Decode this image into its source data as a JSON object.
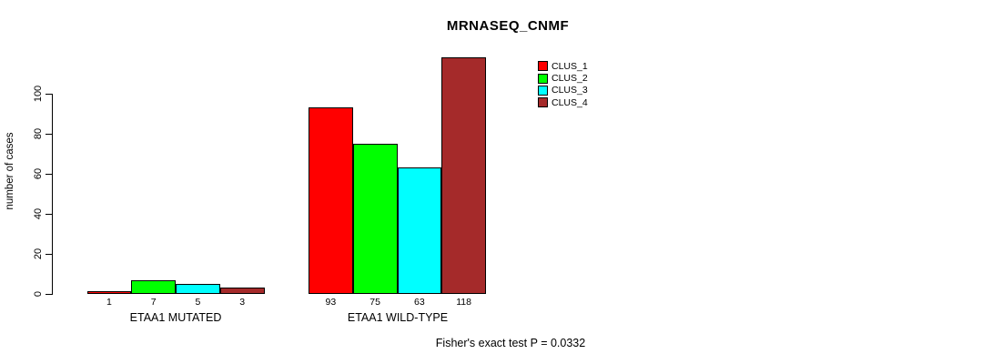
{
  "chart_data": {
    "type": "bar",
    "title": "MRNASEQ_CNMF",
    "xlabel": "",
    "ylabel": "number of cases",
    "ylim": [
      0,
      120
    ],
    "y_ticks": [
      0,
      20,
      40,
      60,
      80,
      100
    ],
    "grid": false,
    "legend_position": "top-right",
    "categories": [
      "ETAA1 MUTATED",
      "ETAA1 WILD-TYPE"
    ],
    "series": [
      {
        "name": "CLUS_1",
        "color": "#FF0000",
        "values": [
          1,
          93
        ]
      },
      {
        "name": "CLUS_2",
        "color": "#00FF00",
        "values": [
          7,
          75
        ]
      },
      {
        "name": "CLUS_3",
        "color": "#00FFFF",
        "values": [
          5,
          63
        ]
      },
      {
        "name": "CLUS_4",
        "color": "#A52A2A",
        "values": [
          3,
          118
        ]
      }
    ],
    "bar_value_labels": true,
    "annotation": "Fisher's exact test P = 0.0332"
  }
}
